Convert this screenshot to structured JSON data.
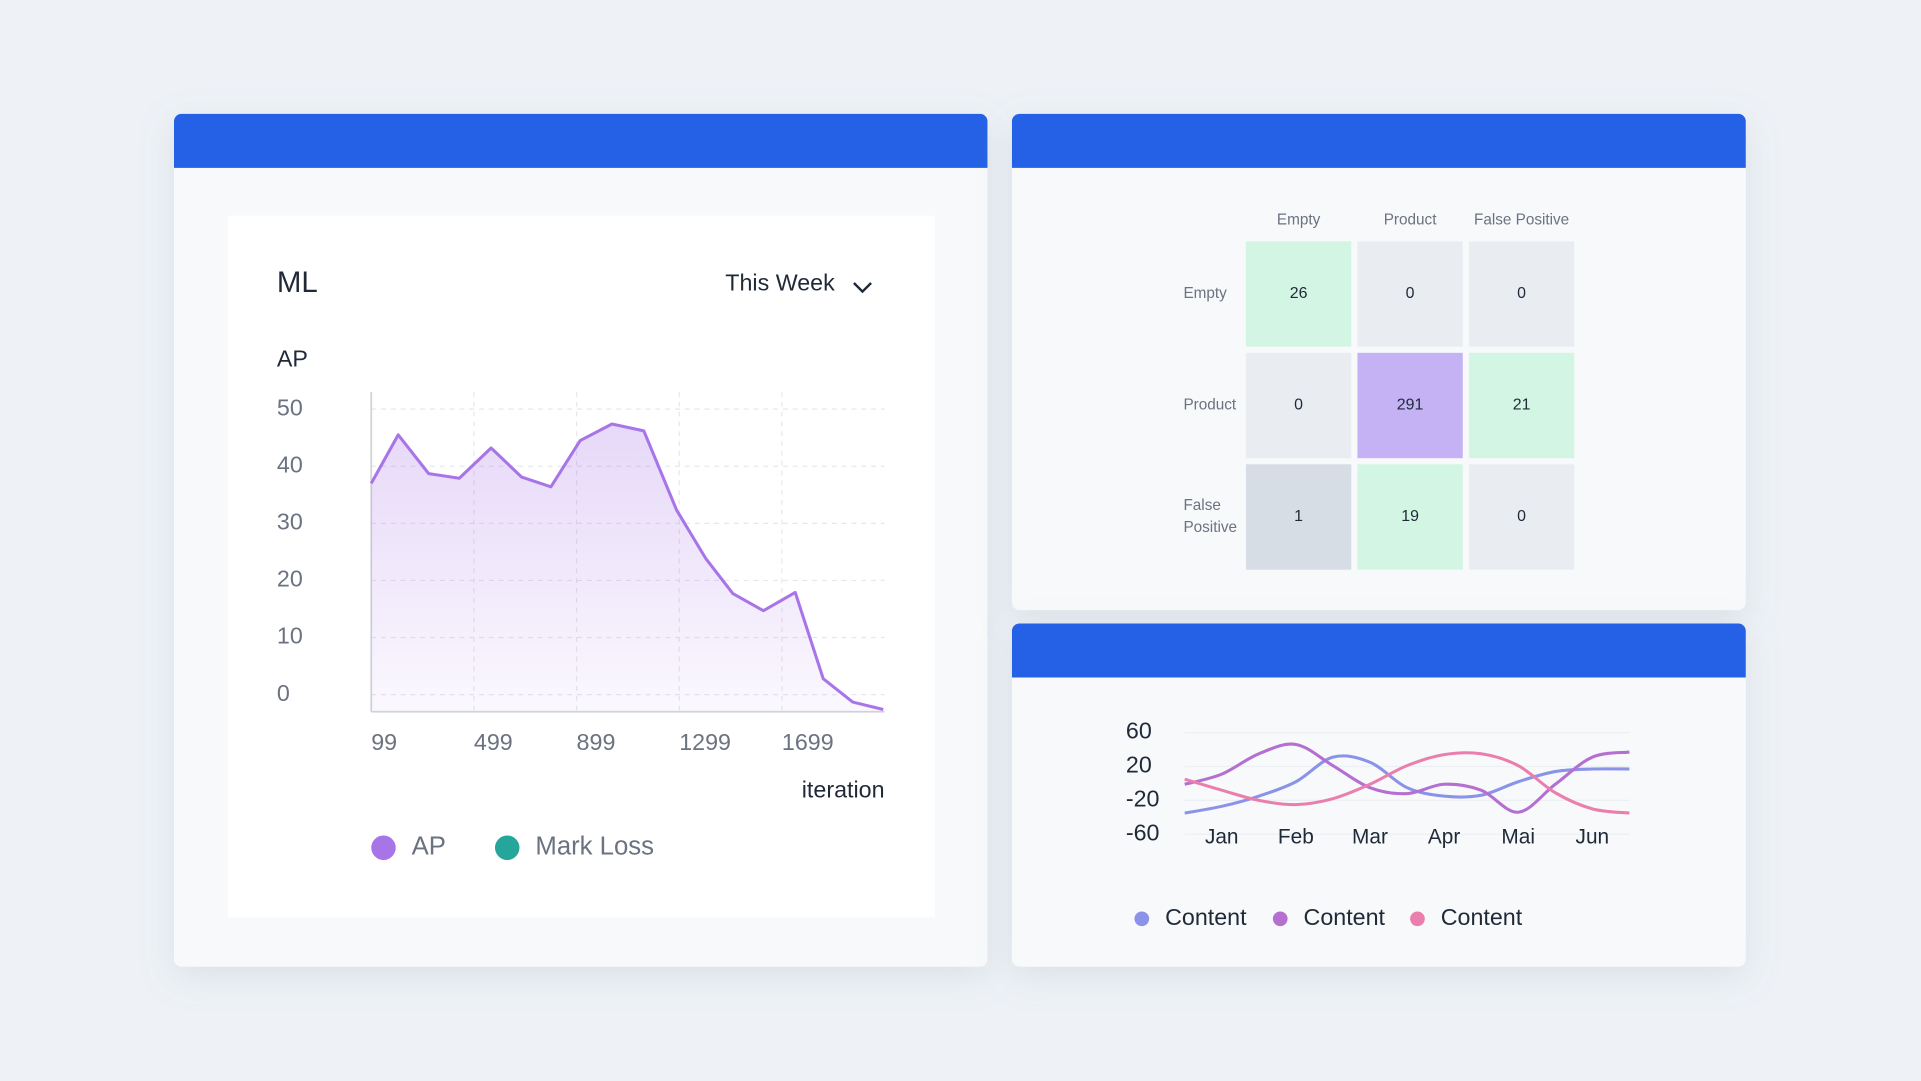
{
  "chart_data": [
    {
      "type": "area",
      "title": "ML",
      "dropdown": "This Week",
      "y_label": "AP",
      "x_label": "iteration",
      "x": [
        99,
        204,
        323,
        442,
        566,
        685,
        799,
        913,
        1037,
        1161,
        1289,
        1403,
        1508,
        1627,
        1751,
        1860,
        1975,
        2094
      ],
      "series": [
        {
          "name": "AP",
          "color": "#a875e8",
          "values": [
            37,
            45.5,
            38.7,
            37.9,
            43.2,
            38.1,
            36.4,
            44.5,
            47.4,
            46.2,
            32.3,
            23.8,
            17.7,
            14.7,
            17.9,
            2.8,
            -1.3,
            -2.6
          ]
        },
        {
          "name": "Mark Loss",
          "color": "#26a69a",
          "values": [
            null,
            null,
            null,
            null,
            null,
            null,
            null,
            null,
            null,
            null,
            null,
            null,
            null,
            null,
            null,
            null,
            null,
            null
          ]
        }
      ],
      "xlim": [
        99,
        2099
      ],
      "xticks": [
        99,
        499,
        899,
        1299,
        1699
      ],
      "ylim": [
        -3,
        53
      ],
      "yticks": [
        50,
        40,
        30,
        20,
        10,
        0
      ],
      "grid": true
    },
    {
      "type": "heatmap",
      "columns": [
        "Empty",
        "Product",
        "False Positive"
      ],
      "rows": [
        [
          "Empty"
        ],
        [
          "Product"
        ],
        [
          "False",
          "Positive"
        ]
      ],
      "values": [
        [
          26,
          0,
          0
        ],
        [
          0,
          291,
          21
        ],
        [
          1,
          19,
          0
        ]
      ],
      "cell_colors": [
        [
          "#d3f5e3",
          "#e9edf2",
          "#e9edf2"
        ],
        [
          "#e9edf2",
          "#c4b2f5",
          "#d3f5e3"
        ],
        [
          "#d7dde5",
          "#d3f5e3",
          "#e9edf2"
        ]
      ]
    },
    {
      "type": "spline",
      "x": [
        0.5,
        1,
        1.5,
        2,
        2.5,
        3,
        3.5,
        4,
        4.5,
        5,
        5.5,
        6,
        6.5
      ],
      "series": [
        {
          "name": "Content",
          "color": "#8b93e8",
          "values": [
            -35,
            -27,
            -15,
            2,
            31,
            25,
            -5,
            -15,
            -14,
            2,
            14,
            17,
            17
          ]
        },
        {
          "name": "Content",
          "color": "#b46fd0",
          "values": [
            -1,
            11,
            35,
            46,
            21,
            -5,
            -12,
            -1,
            -8,
            -34,
            -1,
            31,
            37
          ]
        },
        {
          "name": "Content",
          "color": "#ea7fae",
          "values": [
            5,
            -8,
            -20,
            -25,
            -18,
            -1,
            21,
            34,
            35,
            21,
            -11,
            -30,
            -35
          ]
        }
      ],
      "xlim": [
        0.5,
        6.5
      ],
      "xticks": [
        {
          "value": 1,
          "label": "Jan"
        },
        {
          "value": 2,
          "label": "Feb"
        },
        {
          "value": 3,
          "label": "Mar"
        },
        {
          "value": 4,
          "label": "Apr"
        },
        {
          "value": 5,
          "label": "Mai"
        },
        {
          "value": 6,
          "label": "Jun"
        }
      ],
      "ylim": [
        -60,
        60
      ],
      "yticks": [
        60,
        20,
        -20,
        -60
      ],
      "grid": true
    }
  ]
}
